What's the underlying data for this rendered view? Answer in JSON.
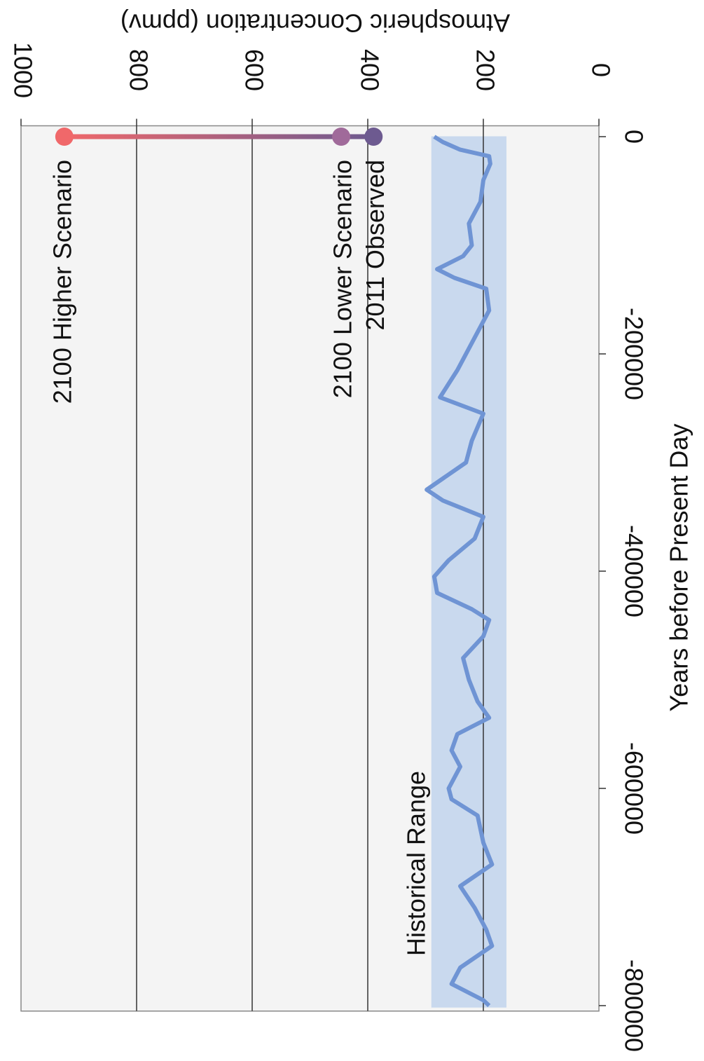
{
  "chart_data": {
    "type": "line",
    "title": "Atmospheric Concentration (ppmv)",
    "x_label": "Years before Present Day",
    "xlim": [
      -805000,
      10000
    ],
    "xticks": [
      -800000,
      -600000,
      -400000,
      -200000,
      0
    ],
    "ylim": [
      0,
      1000
    ],
    "yticks": [
      0,
      200,
      400,
      600,
      800,
      1000
    ],
    "grid": true,
    "background": "#f4f4f4",
    "band": {
      "label": "Historical Range",
      "range": [
        160,
        290
      ],
      "color": "#c9d9ee"
    },
    "series": [
      {
        "color": "#6f94d4",
        "x": [
          0,
          -5000,
          -12000,
          -18000,
          -25000,
          -40000,
          -60000,
          -80000,
          -100000,
          -110000,
          -122000,
          -130000,
          -140000,
          -160000,
          -180000,
          -200000,
          -215000,
          -240000,
          -255000,
          -280000,
          -300000,
          -325000,
          -335000,
          -350000,
          -370000,
          -390000,
          -405000,
          -420000,
          -435000,
          -445000,
          -460000,
          -480000,
          -500000,
          -520000,
          -535000,
          -550000,
          -565000,
          -580000,
          -600000,
          -610000,
          -625000,
          -650000,
          -670000,
          -690000,
          -710000,
          -730000,
          -745000,
          -765000,
          -780000,
          -795000,
          -800000
        ],
        "values": [
          285,
          270,
          240,
          190,
          188,
          200,
          205,
          225,
          220,
          235,
          280,
          250,
          195,
          190,
          210,
          230,
          245,
          275,
          200,
          220,
          230,
          298,
          270,
          200,
          215,
          260,
          285,
          280,
          220,
          190,
          200,
          235,
          225,
          210,
          190,
          245,
          255,
          240,
          260,
          255,
          210,
          200,
          185,
          240,
          215,
          195,
          185,
          240,
          255,
          200,
          190
        ]
      }
    ],
    "markers": [
      {
        "name": "2011 Observed",
        "x": 0,
        "value": 390,
        "color": "#6d5a90"
      },
      {
        "name": "2100 Lower Scenario",
        "x": 0,
        "value": 446,
        "color": "#a06a9a"
      },
      {
        "name": "2100 Higher Scenario",
        "x": 0,
        "value": 925,
        "color": "#f0686a"
      }
    ]
  }
}
